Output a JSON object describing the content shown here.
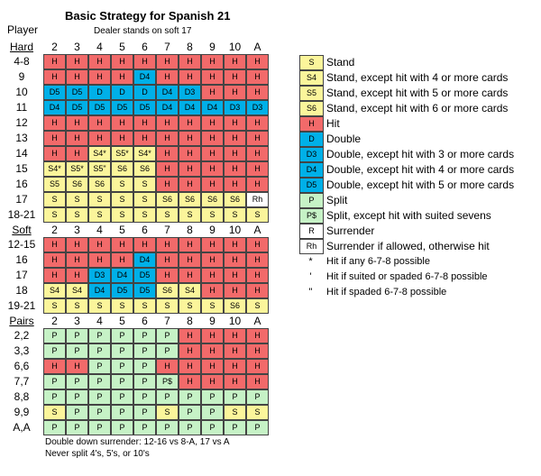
{
  "title": "Basic Strategy for Spanish 21",
  "subtitle": "Dealer stands on soft 17",
  "player_label": "Player",
  "dealer_cards": [
    "2",
    "3",
    "4",
    "5",
    "6",
    "7",
    "8",
    "9",
    "10",
    "A"
  ],
  "colors": {
    "H": "#f26a6a",
    "S": "#fbf59b",
    "D": "#00b0e8",
    "P": "#c6f2c6",
    "R": "#ffffff"
  },
  "sections": [
    {
      "label": "Hard",
      "rows": [
        {
          "label": "4-8",
          "cells": [
            "H",
            "H",
            "H",
            "H",
            "H",
            "H",
            "H",
            "H",
            "H",
            "H"
          ]
        },
        {
          "label": "9",
          "cells": [
            "H",
            "H",
            "H",
            "H",
            "D4",
            "H",
            "H",
            "H",
            "H",
            "H"
          ]
        },
        {
          "label": "10",
          "cells": [
            "D5",
            "D5",
            "D",
            "D",
            "D",
            "D4",
            "D3",
            "H",
            "H",
            "H"
          ]
        },
        {
          "label": "11",
          "cells": [
            "D4",
            "D5",
            "D5",
            "D5",
            "D5",
            "D4",
            "D4",
            "D4",
            "D3",
            "D3"
          ]
        },
        {
          "label": "12",
          "cells": [
            "H",
            "H",
            "H",
            "H",
            "H",
            "H",
            "H",
            "H",
            "H",
            "H"
          ]
        },
        {
          "label": "13",
          "cells": [
            "H",
            "H",
            "H",
            "H",
            "H",
            "H",
            "H",
            "H",
            "H",
            "H"
          ]
        },
        {
          "label": "14",
          "cells": [
            "H",
            "H",
            "S4*",
            "S5*",
            "S4*",
            "H",
            "H",
            "H",
            "H",
            "H"
          ]
        },
        {
          "label": "15",
          "cells": [
            "S4*",
            "S5*",
            "S5\"",
            "S6",
            "S6",
            "H",
            "H",
            "H",
            "H",
            "H"
          ]
        },
        {
          "label": "16",
          "cells": [
            "S5",
            "S6",
            "S6",
            "S",
            "S",
            "H",
            "H",
            "H",
            "H",
            "H"
          ]
        },
        {
          "label": "17",
          "cells": [
            "S",
            "S",
            "S",
            "S",
            "S",
            "S6",
            "S6",
            "S6",
            "S6",
            "Rh"
          ]
        },
        {
          "label": "18-21",
          "cells": [
            "S",
            "S",
            "S",
            "S",
            "S",
            "S",
            "S",
            "S",
            "S",
            "S"
          ]
        }
      ]
    },
    {
      "label": "Soft",
      "rows": [
        {
          "label": "12-15",
          "cells": [
            "H",
            "H",
            "H",
            "H",
            "H",
            "H",
            "H",
            "H",
            "H",
            "H"
          ]
        },
        {
          "label": "16",
          "cells": [
            "H",
            "H",
            "H",
            "H",
            "D4",
            "H",
            "H",
            "H",
            "H",
            "H"
          ]
        },
        {
          "label": "17",
          "cells": [
            "H",
            "H",
            "D3",
            "D4",
            "D5",
            "H",
            "H",
            "H",
            "H",
            "H"
          ]
        },
        {
          "label": "18",
          "cells": [
            "S4",
            "S4",
            "D4",
            "D5",
            "D5",
            "S6",
            "S4",
            "H",
            "H",
            "H"
          ]
        },
        {
          "label": "19-21",
          "cells": [
            "S",
            "S",
            "S",
            "S",
            "S",
            "S",
            "S",
            "S",
            "S6",
            "S"
          ]
        }
      ]
    },
    {
      "label": "Pairs",
      "rows": [
        {
          "label": "2,2",
          "cells": [
            "P",
            "P",
            "P",
            "P",
            "P",
            "P",
            "H",
            "H",
            "H",
            "H"
          ]
        },
        {
          "label": "3,3",
          "cells": [
            "P",
            "P",
            "P",
            "P",
            "P",
            "P",
            "H",
            "H",
            "H",
            "H"
          ]
        },
        {
          "label": "6,6",
          "cells": [
            "H",
            "H",
            "P",
            "P",
            "P",
            "H",
            "H",
            "H",
            "H",
            "H"
          ]
        },
        {
          "label": "7,7",
          "cells": [
            "P",
            "P",
            "P",
            "P",
            "P",
            "P$",
            "H",
            "H",
            "H",
            "H"
          ]
        },
        {
          "label": "8,8",
          "cells": [
            "P",
            "P",
            "P",
            "P",
            "P",
            "P",
            "P",
            "P",
            "P",
            "P"
          ]
        },
        {
          "label": "9,9",
          "cells": [
            "S",
            "P",
            "P",
            "P",
            "P",
            "S",
            "P",
            "P",
            "S",
            "S"
          ]
        },
        {
          "label": "A,A",
          "cells": [
            "P",
            "P",
            "P",
            "P",
            "P",
            "P",
            "P",
            "P",
            "P",
            "P"
          ]
        }
      ]
    }
  ],
  "legend": [
    {
      "code": "S",
      "text": "Stand"
    },
    {
      "code": "S4",
      "text": "Stand, except hit with 4 or more cards"
    },
    {
      "code": "S5",
      "text": "Stand, except hit with 5 or more cards"
    },
    {
      "code": "S6",
      "text": "Stand, except hit with 6 or more cards"
    },
    {
      "code": "H",
      "text": "Hit"
    },
    {
      "code": "D",
      "text": "Double"
    },
    {
      "code": "D3",
      "text": "Double, except hit with 3 or more cards"
    },
    {
      "code": "D4",
      "text": "Double, except hit with 4 or more cards"
    },
    {
      "code": "D5",
      "text": "Double, except hit with 5 or more cards"
    },
    {
      "code": "P",
      "text": "Split"
    },
    {
      "code": "P$",
      "text": "Split, except hit with suited sevens"
    },
    {
      "code": "R",
      "text": "Surrender"
    },
    {
      "code": "Rh",
      "text": "Surrender if allowed, otherwise hit"
    }
  ],
  "notes": [
    {
      "symbol": "*",
      "text": "Hit if any 6-7-8 possible"
    },
    {
      "symbol": "'",
      "text": "Hit if suited or spaded 6-7-8 possible"
    },
    {
      "symbol": "\"",
      "text": "Hit if spaded 6-7-8 possible"
    }
  ],
  "footer": [
    "Double down surrender:  12-16 vs 8-A, 17 vs A",
    "Never split 4's, 5's, or 10's"
  ]
}
